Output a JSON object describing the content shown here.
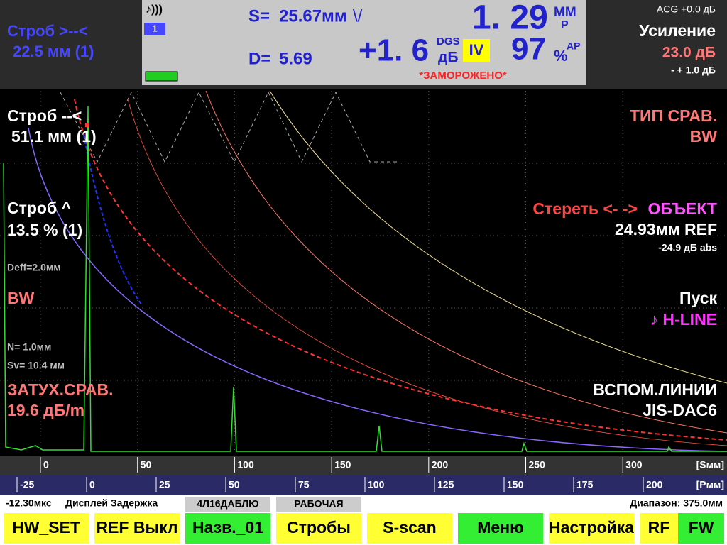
{
  "header": {
    "gate_left": {
      "label": "Строб >--<",
      "value": "22.5 мм (1)"
    },
    "status": {
      "probe_number": "1",
      "s_label": "S=",
      "s_value": "25.67мм",
      "leg": "\\/",
      "d_label": "D=",
      "d_value": "5.69",
      "depth": "1. 29",
      "depth_unit": "ММ",
      "depth_sub": "P",
      "gain_diff": "+1. 6",
      "dgs": "DGS",
      "db": "дБ",
      "leg_indicator": "IV",
      "amplitude": "97",
      "amp_unit": "%",
      "amp_sub": "AP",
      "frozen": "*ЗАМОРОЖЕНО*"
    },
    "gain": {
      "acg": "ACG +0.0 дБ",
      "label": "Усиление",
      "value": "23.0 дБ",
      "step": "- + 1.0 дБ"
    }
  },
  "left_panel": {
    "gate_a": "Строб --<",
    "gate_a_value": "51.1 мм (1)",
    "gate_b": "Строб ^",
    "gate_b_value": "13.5 % (1)",
    "deff": "Deff=2.0мм",
    "mode": "BW",
    "n": "N= 1.0мм",
    "sv": "Sv= 10.4 мм",
    "attenuation": "ЗАТУХ.СРАВ.",
    "attenuation_value": "19.6 дБ/m"
  },
  "right_panel": {
    "ref_type": "ТИП СРАВ.",
    "ref_type_value": "BW",
    "erase": "Стереть <- -> ",
    "object": "ОБЪЕКТ",
    "ref": "24.93мм REF",
    "ref_abs": "-24.9 дБ abs",
    "start": "Пуск",
    "start_value": "♪ H-LINE",
    "aux_lines": "ВСПОМ.ЛИНИИ",
    "aux_value": "JIS-DAC6"
  },
  "scale_s": {
    "ticks": [
      0,
      50,
      100,
      150,
      200,
      250,
      300
    ],
    "unit": "[Sмм]"
  },
  "scale_p": {
    "ticks": [
      -25,
      0,
      25,
      50,
      75,
      100,
      125,
      150,
      175,
      200
    ],
    "unit": "[Pмм]"
  },
  "footer": {
    "delay_value": "-12.30мкс",
    "delay_label": "Дисплей Задержка",
    "probe": "4Л16ДАБЛЮ",
    "mode": "РАБОЧАЯ",
    "range": "Диапазон: 375.0мм"
  },
  "buttons": [
    {
      "label": "HW_SET",
      "color": "#ffff33"
    },
    {
      "label": "REF Выкл",
      "color": "#ffff33"
    },
    {
      "label": "Назв._01",
      "color": "#33ee33"
    },
    {
      "label": "Стробы",
      "color": "#ffff33"
    },
    {
      "label": "S-scan",
      "color": "#ffff33"
    },
    {
      "label": "Меню",
      "color": "#33ee33"
    },
    {
      "label": "Настройка",
      "color": "#ffff33"
    },
    {
      "label": "RF",
      "color": "#ffff33"
    },
    {
      "label": "FW",
      "color": "#33ee33"
    }
  ]
}
